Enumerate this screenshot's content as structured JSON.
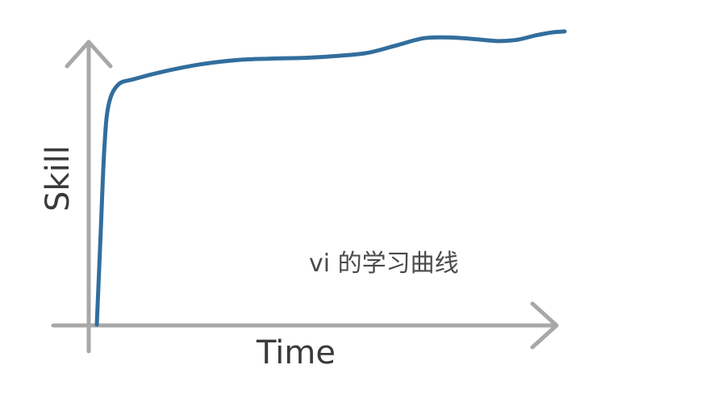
{
  "chart_data": {
    "type": "line",
    "title": "",
    "xlabel": "Time",
    "ylabel": "Skill",
    "annotation": "vi 的学习曲线",
    "grid": false,
    "legend": "none",
    "xlim": [
      0,
      100
    ],
    "ylim": [
      0,
      100
    ],
    "series": [
      {
        "color": "#326e9d",
        "x": [
          0,
          0.8,
          1.6,
          2.5,
          4.5,
          8,
          14,
          22,
          30,
          37,
          45,
          52,
          58,
          64,
          70,
          76,
          82,
          86,
          90,
          94,
          97.5,
          100
        ],
        "y": [
          0,
          30,
          60,
          75,
          82,
          84,
          86.5,
          89,
          90.5,
          91,
          91.3,
          92,
          93,
          95.5,
          98,
          98.2,
          97.5,
          97,
          97.5,
          99,
          100,
          100.3
        ]
      }
    ],
    "axis_color": "#a8a8a8"
  }
}
